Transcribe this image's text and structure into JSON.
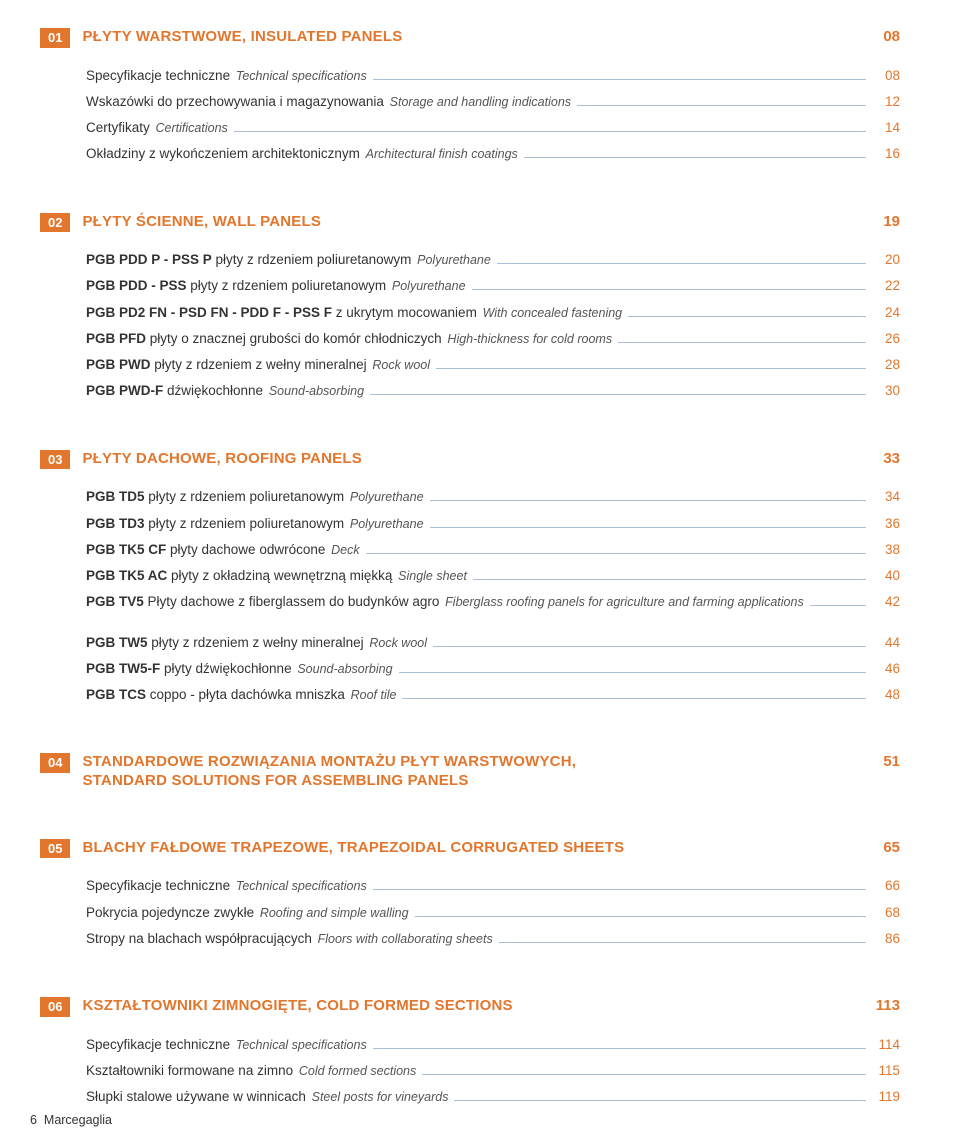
{
  "colors": {
    "accent": "#e2762c",
    "text": "#333333",
    "italic_text": "#555555",
    "leader": "#a7bfd6",
    "background": "#ffffff"
  },
  "typography": {
    "section_title_size_pt": 15,
    "section_title_weight": 700,
    "row_size_pt": 13.5,
    "italic_size_pt": 12.5
  },
  "sections": [
    {
      "num": "01",
      "title": "PŁYTY WARSTWOWE, INSULATED PANELS",
      "page": "08",
      "groups": [
        [
          {
            "text": "Specyfikacje techniczne",
            "italic": "Technical specifications",
            "page": "08"
          },
          {
            "text": "Wskazówki do przechowywania i magazynowania",
            "italic": "Storage and handling indications",
            "page": "12"
          },
          {
            "text": "Certyfikaty",
            "italic": "Certifications",
            "page": "14"
          },
          {
            "text": "Okładziny z wykończeniem architektonicznym",
            "italic": "Architectural finish coatings",
            "page": "16"
          }
        ]
      ]
    },
    {
      "num": "02",
      "title": "PŁYTY ŚCIENNE, WALL PANELS",
      "page": "19",
      "groups": [
        [
          {
            "bold": "PGB PDD P - PSS P",
            "text": " płyty z rdzeniem poliuretanowym ",
            "italic": "Polyurethane",
            "page": "20"
          },
          {
            "bold": "PGB PDD - PSS",
            "text": " płyty z rdzeniem poliuretanowym ",
            "italic": "Polyurethane",
            "page": "22"
          },
          {
            "bold": "PGB PD2 FN - PSD FN - PDD F - PSS F",
            "text": " z ukrytym mocowaniem ",
            "italic": "With concealed fastening",
            "page": "24"
          },
          {
            "bold": "PGB PFD",
            "text": " płyty o znacznej grubości do komór chłodniczych ",
            "italic": "High-thickness for cold rooms",
            "page": "26"
          },
          {
            "bold": "PGB PWD",
            "text": " płyty z rdzeniem z wełny mineralnej ",
            "italic": "Rock wool",
            "page": "28"
          },
          {
            "bold": "PGB PWD-F",
            "text": " dźwiękochłonne ",
            "italic": "Sound-absorbing",
            "page": "30"
          }
        ]
      ]
    },
    {
      "num": "03",
      "title": "PŁYTY DACHOWE, ROOFING PANELS",
      "page": "33",
      "groups": [
        [
          {
            "bold": "PGB TD5",
            "text": " płyty z rdzeniem poliuretanowym ",
            "italic": "Polyurethane",
            "page": "34"
          },
          {
            "bold": "PGB TD3",
            "text": " płyty z rdzeniem poliuretanowym ",
            "italic": "Polyurethane",
            "page": "36"
          },
          {
            "bold": "PGB TK5 CF",
            "text": " płyty dachowe odwrócone ",
            "italic": "Deck",
            "page": "38"
          },
          {
            "bold": "PGB TK5 AC",
            "text": " płyty z okładziną wewnętrzną miękką ",
            "italic": "Single sheet",
            "page": "40"
          },
          {
            "bold": "PGB TV5",
            "text": " Płyty dachowe z fiberglassem do budynków agro ",
            "italic": "Fiberglass roofing panels for agriculture and farming applications",
            "page": "42"
          }
        ],
        [
          {
            "bold": "PGB TW5",
            "text": " płyty z rdzeniem z wełny mineralnej ",
            "italic": "Rock wool",
            "page": "44"
          },
          {
            "bold": "PGB TW5-F",
            "text": " płyty dźwiękochłonne ",
            "italic": "Sound-absorbing",
            "page": "46"
          },
          {
            "bold": "PGB TCS",
            "text": " coppo - płyta dachówka mniszka ",
            "italic": "Roof tile",
            "page": "48"
          }
        ]
      ]
    },
    {
      "num": "04",
      "title": "STANDARDOWE ROZWIĄZANIA MONTAŻU PŁYT WARSTWOWYCH,",
      "title_line2": "STANDARD SOLUTIONS FOR ASSEMBLING PANELS",
      "page": "51",
      "groups": []
    },
    {
      "num": "05",
      "title": "BLACHY FAŁDOWE TRAPEZOWE, TRAPEZOIDAL CORRUGATED SHEETS",
      "page": "65",
      "groups": [
        [
          {
            "text": "Specyfikacje techniczne ",
            "italic": "Technical specifications",
            "page": "66"
          },
          {
            "text": "Pokrycia pojedyncze zwykłe ",
            "italic": "Roofing and simple walling",
            "page": "68"
          },
          {
            "text": "Stropy na blachach współpracujących ",
            "italic": "Floors with collaborating sheets",
            "page": "86"
          }
        ]
      ]
    },
    {
      "num": "06",
      "title": "KSZTAŁTOWNIKI ZIMNOGIĘTE, COLD FORMED SECTIONS",
      "page": "113",
      "groups": [
        [
          {
            "text": "Specyfikacje techniczne ",
            "italic": "Technical specifications",
            "page": "114"
          },
          {
            "text": "Kształtowniki formowane na zimno ",
            "italic": "Cold formed sections",
            "page": "115"
          },
          {
            "text": "Słupki stalowe używane w winnicach ",
            "italic": "Steel posts for vineyards",
            "page": "119"
          }
        ]
      ]
    }
  ],
  "footer": {
    "page_num": "6",
    "brand": "Marcegaglia"
  }
}
